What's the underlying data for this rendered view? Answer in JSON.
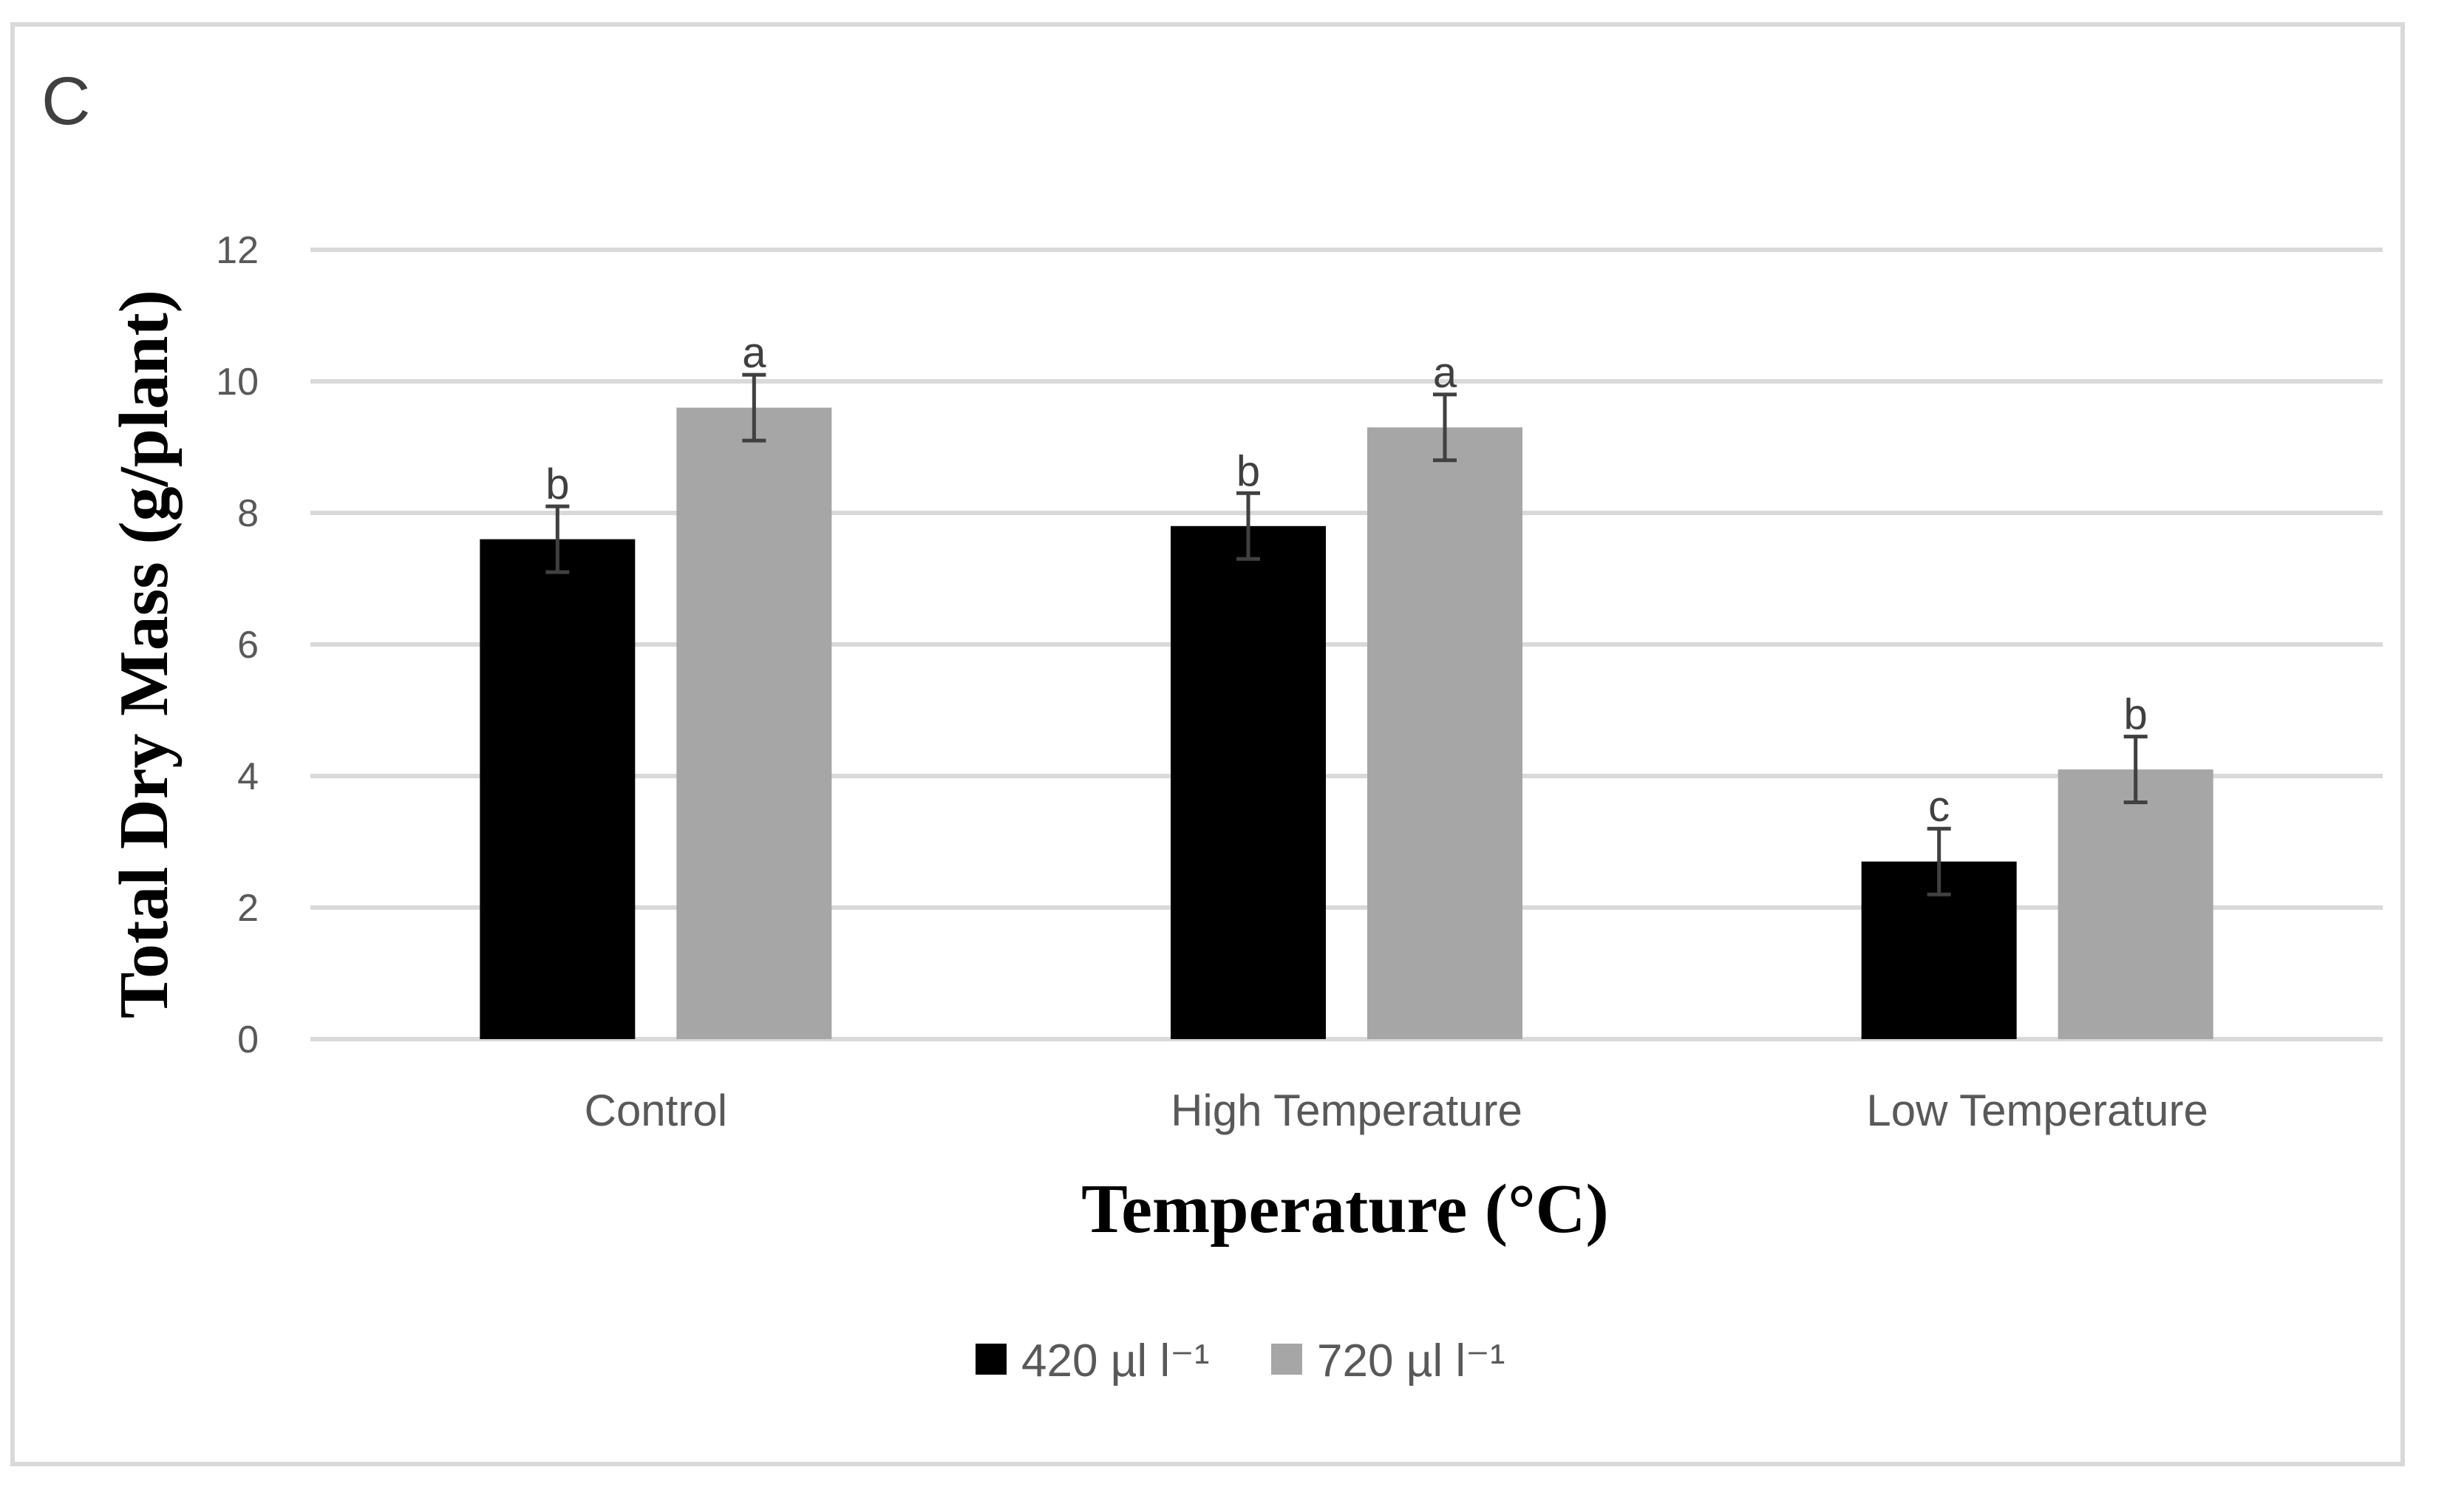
{
  "panel_label": "C",
  "chart_data": {
    "type": "bar",
    "title": "",
    "xlabel": "Temperature (°C)",
    "ylabel": "Total Dry Mass (g/plant)",
    "ylim": [
      0,
      12
    ],
    "yticks": [
      0,
      2,
      4,
      6,
      8,
      10,
      12
    ],
    "grid": true,
    "categories": [
      "Control",
      "High Temperature",
      "Low Temperature"
    ],
    "series": [
      {
        "name": "420 µl l⁻¹",
        "color": "#000000",
        "values": [
          7.6,
          7.8,
          2.7
        ],
        "errors": [
          0.5,
          0.5,
          0.5
        ],
        "labels": [
          "b",
          "b",
          "c"
        ]
      },
      {
        "name": "720 µl l⁻¹",
        "color": "#a6a6a6",
        "values": [
          9.6,
          9.3,
          4.1
        ],
        "errors": [
          0.5,
          0.5,
          0.5
        ],
        "labels": [
          "a",
          "a",
          "b"
        ]
      }
    ],
    "legend": "bottom"
  }
}
